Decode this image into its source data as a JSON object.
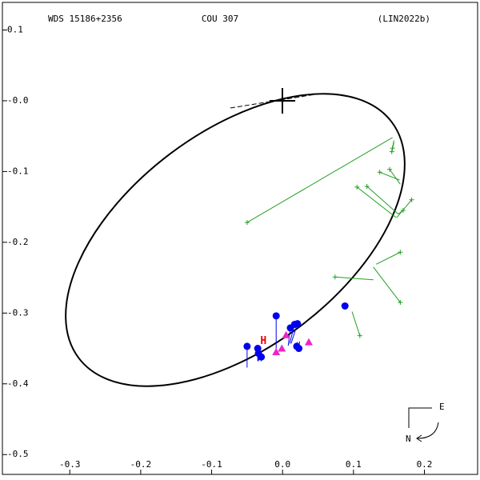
{
  "chart_data": {
    "type": "scatter",
    "title": "WDS 15186+2356",
    "subtitle": "COU 307",
    "reference": "(LIN2022b)",
    "compass": {
      "east": "E",
      "north": "N"
    },
    "xlim": [
      -0.395,
      0.275
    ],
    "ylim": [
      -0.528,
      0.139
    ],
    "xticks": [
      -0.3,
      -0.2,
      -0.1,
      {
        "value": 0,
        "label": "0.0"
      },
      0.1,
      0.2
    ],
    "yticks": [
      0.1,
      {
        "value": 0,
        "label": "-0.0"
      },
      -0.1,
      -0.2,
      -0.3,
      -0.4,
      -0.5
    ],
    "series": [
      {
        "marker": "plus",
        "color": "#22a022",
        "x": [
          -0.05,
          0.105,
          0.119,
          0.137,
          0.151,
          0.155,
          0.154,
          0.17,
          0.182,
          0.074,
          0.166,
          0.166,
          0.109
        ],
        "values": [
          -0.172,
          -0.122,
          -0.121,
          -0.101,
          -0.097,
          -0.067,
          -0.072,
          -0.155,
          -0.14,
          -0.249,
          -0.285,
          -0.214,
          -0.332
        ],
        "orbit_x": [
          0.155,
          0.16,
          0.163,
          0.165,
          0.166,
          0.157,
          0.157,
          0.163,
          0.161,
          0.128,
          0.128,
          0.132,
          0.098
        ],
        "orbit_y": [
          -0.052,
          -0.165,
          -0.16,
          -0.112,
          -0.118,
          -0.056,
          -0.059,
          -0.16,
          -0.165,
          -0.253,
          -0.235,
          -0.231,
          -0.298
        ]
      },
      {
        "marker": "circle",
        "color": "#0000ee",
        "x": [
          -0.009,
          -0.05,
          -0.035,
          -0.034,
          -0.03,
          0.011,
          0.017,
          0.021,
          0.02,
          0.023,
          0.088
        ],
        "values": [
          -0.304,
          -0.347,
          -0.35,
          -0.357,
          -0.362,
          -0.321,
          -0.316,
          -0.315,
          -0.347,
          -0.35,
          -0.29
        ],
        "orbit_x": [
          -0.009,
          -0.05,
          -0.035,
          -0.034,
          -0.03,
          0.008,
          0.01,
          0.012,
          0.021,
          0.024,
          0.087
        ],
        "orbit_y": [
          -0.355,
          -0.377,
          -0.368,
          -0.368,
          -0.368,
          -0.346,
          -0.343,
          -0.343,
          -0.341,
          -0.34,
          -0.293
        ]
      },
      {
        "marker": "triangle",
        "color": "#ee22cc",
        "x": [
          0.005,
          -0.001,
          -0.009,
          0.037
        ],
        "values": [
          -0.331,
          -0.35,
          -0.355,
          -0.341
        ]
      },
      {
        "marker": "H",
        "color": "#ee0000",
        "label": "H",
        "x": [
          -0.027
        ],
        "values": [
          -0.34
        ]
      }
    ]
  }
}
